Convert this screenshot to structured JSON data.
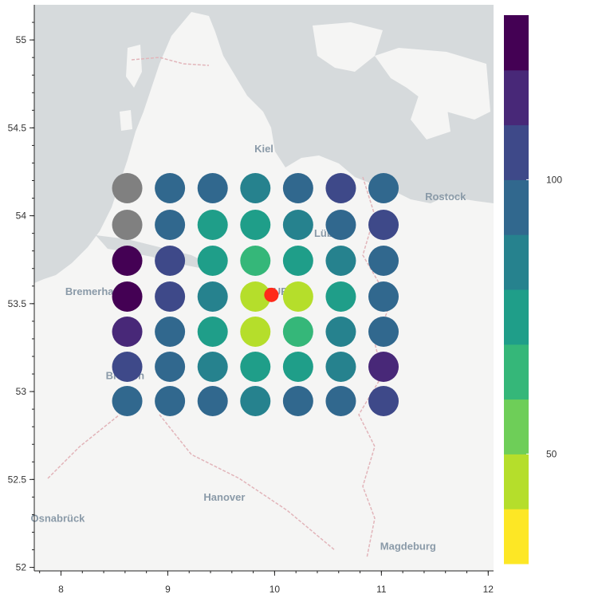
{
  "map": {
    "x_ticks": [
      "8",
      "9",
      "10",
      "11",
      "12"
    ],
    "y_ticks": [
      "55",
      "54.5",
      "54",
      "53.5",
      "53",
      "52.5",
      "52"
    ],
    "place_labels": [
      {
        "name": "Kiel",
        "lon": 9.9,
        "lat": 54.36
      },
      {
        "name": "Rostock",
        "lon": 11.6,
        "lat": 54.09
      },
      {
        "name": "Lübeck",
        "lon": 10.54,
        "lat": 53.88
      },
      {
        "name": "Bremerhaven",
        "lon": 8.35,
        "lat": 53.55
      },
      {
        "name": "HAMBURG",
        "lon": 9.95,
        "lat": 53.55
      },
      {
        "name": "Bremen",
        "lon": 8.6,
        "lat": 53.07
      },
      {
        "name": "Hanover",
        "lon": 9.53,
        "lat": 52.38
      },
      {
        "name": "Osnabrück",
        "lon": 7.97,
        "lat": 52.26
      },
      {
        "name": "Magdeburg",
        "lon": 11.25,
        "lat": 52.1
      }
    ],
    "highlight_point": {
      "lon": 9.97,
      "lat": 53.55,
      "color": "#ff2a1a"
    }
  },
  "chart_data": {
    "type": "scatter",
    "title": "",
    "xlabel": "",
    "ylabel": "",
    "xlim": [
      7.75,
      12.05
    ],
    "ylim": [
      51.98,
      55.2
    ],
    "x": [
      8.62,
      9.02,
      9.42,
      9.82,
      10.22,
      10.62,
      11.02
    ],
    "y": [
      54.2,
      53.9,
      53.68,
      53.5,
      53.3,
      53.1,
      52.95
    ],
    "cells": [
      [
        null,
        90,
        90,
        80,
        90,
        100,
        95
      ],
      [
        null,
        90,
        70,
        70,
        80,
        90,
        100
      ],
      [
        130,
        100,
        70,
        60,
        70,
        80,
        90
      ],
      [
        125,
        100,
        80,
        40,
        40,
        70,
        90
      ],
      [
        115,
        95,
        70,
        40,
        60,
        80,
        95
      ],
      [
        105,
        90,
        80,
        70,
        70,
        80,
        115
      ],
      [
        95,
        90,
        95,
        80,
        90,
        95,
        100
      ]
    ],
    "missing_color": "#808080",
    "colorbar": {
      "ticks": [
        "100",
        "50"
      ],
      "tick_values": [
        100,
        50
      ],
      "range": [
        30,
        130
      ],
      "colors": [
        "#fde725",
        "#b5de2b",
        "#6ece58",
        "#35b779",
        "#1f9e89",
        "#26828e",
        "#31688e",
        "#3e4989",
        "#482878",
        "#440154"
      ]
    }
  }
}
